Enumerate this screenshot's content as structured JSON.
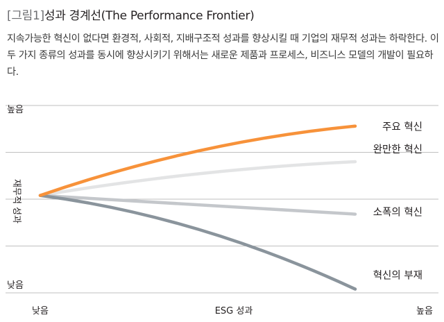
{
  "figure": {
    "tag": "[그림1]",
    "title": "성과 경계선(The Performance Frontier)",
    "caption": "지속가능한 혁신이 없다면 환경적, 사회적, 지배구조적 성과를 향상시킬 때 기업의 재무적 성과는 하락한다. 이 두 가지 종류의 성과를 동시에 향상시키기 위해서는 새로운 제품과 프로세스, 비즈니스 모델의 개발이 필요하다."
  },
  "chart_data": {
    "type": "line",
    "xlabel": "ESG 성과",
    "ylabel": "재무적 성과",
    "x_ticks": [
      "낮음",
      "높음"
    ],
    "y_ticks": [
      "높음",
      "낮음"
    ],
    "x": [
      0,
      1
    ],
    "ylim": [
      0,
      1
    ],
    "grid": true,
    "series": [
      {
        "name": "주요 혁신",
        "values": [
          0.52,
          0.89
        ],
        "color": "#f7923a",
        "stroke": 4.5,
        "curve": "concave"
      },
      {
        "name": "완만한 혁신",
        "values": [
          0.52,
          0.7
        ],
        "color": "#e3e4e5",
        "stroke": 4.5,
        "curve": "concave"
      },
      {
        "name": "소폭의 혁신",
        "values": [
          0.52,
          0.42
        ],
        "color": "#c4c7cb",
        "stroke": 4.5,
        "curve": "linear"
      },
      {
        "name": "혁신의 부재",
        "values": [
          0.52,
          0.02
        ],
        "color": "#8a949c",
        "stroke": 4.5,
        "curve": "convex"
      }
    ]
  }
}
